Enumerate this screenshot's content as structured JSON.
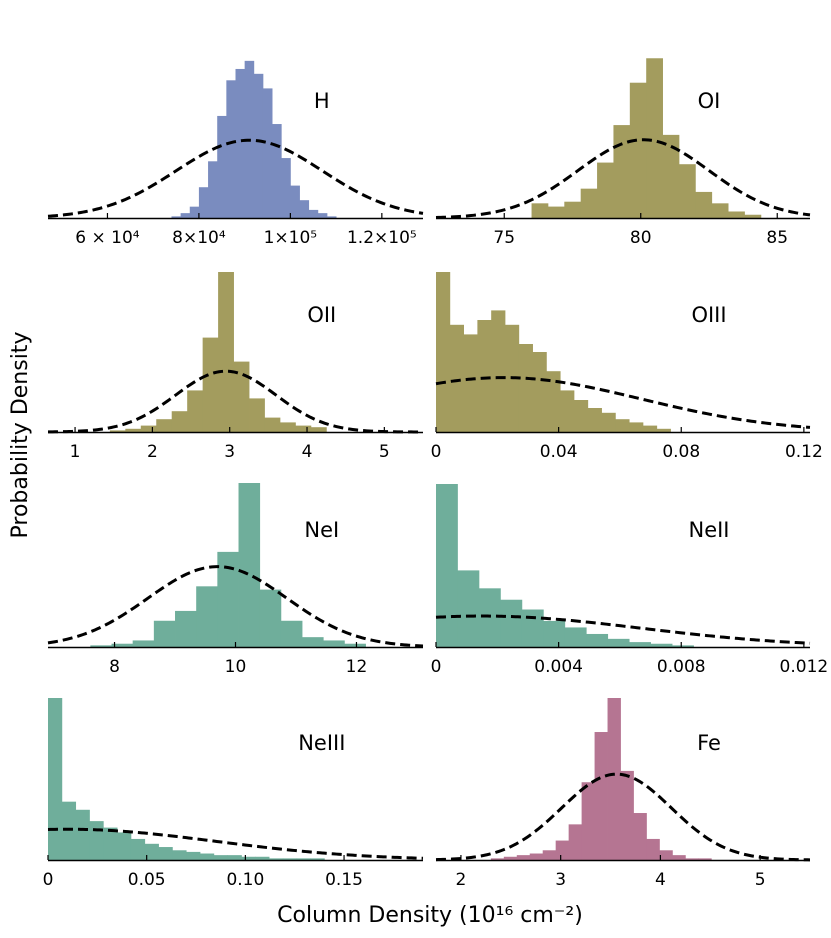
{
  "figure": {
    "ylabel": "Probability Density",
    "xlabel": "Column Density (10¹⁶ cm⁻²)"
  },
  "colors": {
    "blue": "#7a8cbf",
    "olive": "#a39c5e",
    "green": "#6fae9b",
    "pink": "#b57592",
    "fit_line": "#000000"
  },
  "chart_data": [
    {
      "type": "bar",
      "label": "H",
      "color_key": "blue",
      "xlim": [
        47000,
        129000
      ],
      "ticks": [
        {
          "v": 60000,
          "t": "6 × 10⁴"
        },
        {
          "v": 80000,
          "t": "8×10⁴"
        },
        {
          "v": 100000,
          "t": "1×10⁵"
        },
        {
          "v": 120000,
          "t": "1.2×10⁵"
        }
      ],
      "bin_start": 74000,
      "bin_width": 2000,
      "heights": [
        0.01,
        0.03,
        0.07,
        0.19,
        0.35,
        0.63,
        0.85,
        0.92,
        0.97,
        0.89,
        0.8,
        0.58,
        0.37,
        0.2,
        0.11,
        0.05,
        0.03,
        0.01
      ],
      "fit": {
        "mu": 91000,
        "sigma": 16000,
        "peak": 0.48
      }
    },
    {
      "type": "bar",
      "label": "OI",
      "color_key": "olive",
      "xlim": [
        72.5,
        86.2
      ],
      "ticks": [
        {
          "v": 75,
          "t": "75"
        },
        {
          "v": 80,
          "t": "80"
        },
        {
          "v": 85,
          "t": "85"
        }
      ],
      "bin_start": 76.0,
      "bin_width": 0.6,
      "heights": [
        0.09,
        0.07,
        0.1,
        0.18,
        0.34,
        0.57,
        0.83,
        0.98,
        0.51,
        0.33,
        0.16,
        0.09,
        0.04,
        0.02
      ],
      "fit": {
        "mu": 80.1,
        "sigma": 2.4,
        "peak": 0.48
      }
    },
    {
      "type": "bar",
      "label": "OII",
      "color_key": "olive",
      "xlim": [
        0.65,
        5.5
      ],
      "ticks": [
        {
          "v": 1,
          "t": "1"
        },
        {
          "v": 2,
          "t": "2"
        },
        {
          "v": 3,
          "t": "3"
        },
        {
          "v": 4,
          "t": "4"
        },
        {
          "v": 5,
          "t": "5"
        }
      ],
      "bin_start": 1.45,
      "bin_width": 0.2,
      "heights": [
        0.01,
        0.02,
        0.04,
        0.08,
        0.13,
        0.26,
        0.59,
        1.0,
        0.44,
        0.21,
        0.09,
        0.06,
        0.04,
        0.03
      ],
      "fit": {
        "mu": 2.95,
        "sigma": 0.65,
        "peak": 0.38
      }
    },
    {
      "type": "bar",
      "label": "OIII",
      "color_key": "olive",
      "xlim": [
        0,
        0.122
      ],
      "ticks": [
        {
          "v": 0,
          "t": "0"
        },
        {
          "v": 0.04,
          "t": "0.04"
        },
        {
          "v": 0.08,
          "t": "0.08"
        },
        {
          "v": 0.12,
          "t": "0.12"
        }
      ],
      "bin_start": 0,
      "bin_width": 0.0045,
      "heights": [
        1.0,
        0.67,
        0.61,
        0.7,
        0.76,
        0.67,
        0.55,
        0.5,
        0.38,
        0.26,
        0.2,
        0.15,
        0.12,
        0.08,
        0.06,
        0.04,
        0.02
      ],
      "fit": {
        "mu": 0.022,
        "sigma": 0.045,
        "peak": 0.34
      }
    },
    {
      "type": "bar",
      "label": "NeI",
      "color_key": "green",
      "xlim": [
        6.9,
        13.1
      ],
      "ticks": [
        {
          "v": 8,
          "t": "8"
        },
        {
          "v": 10,
          "t": "10"
        },
        {
          "v": 12,
          "t": "12"
        }
      ],
      "bin_start": 7.6,
      "bin_width": 0.35,
      "heights": [
        0.01,
        0.02,
        0.04,
        0.16,
        0.22,
        0.37,
        0.58,
        1.0,
        0.35,
        0.16,
        0.06,
        0.04,
        0.02
      ],
      "fit": {
        "mu": 9.7,
        "sigma": 1.15,
        "peak": 0.49
      }
    },
    {
      "type": "bar",
      "label": "NeII",
      "color_key": "green",
      "xlim": [
        0,
        0.0122
      ],
      "ticks": [
        {
          "v": 0,
          "t": "0"
        },
        {
          "v": 0.004,
          "t": "0.004"
        },
        {
          "v": 0.008,
          "t": "0.008"
        },
        {
          "v": 0.012,
          "t": "0.012"
        }
      ],
      "bin_start": 0,
      "bin_width": 0.0007,
      "heights": [
        1.0,
        0.47,
        0.36,
        0.29,
        0.23,
        0.16,
        0.12,
        0.08,
        0.05,
        0.03,
        0.02,
        0.01
      ],
      "fit": {
        "mu": 0.0015,
        "sigma": 0.0052,
        "peak": 0.19
      }
    },
    {
      "type": "bar",
      "label": "NeIII",
      "color_key": "green",
      "xlim": [
        0,
        0.19
      ],
      "ticks": [
        {
          "v": 0,
          "t": "0"
        },
        {
          "v": 0.05,
          "t": "0.05"
        },
        {
          "v": 0.1,
          "t": "0.10"
        },
        {
          "v": 0.15,
          "t": "0.15"
        }
      ],
      "bin_start": 0,
      "bin_width": 0.007,
      "heights": [
        1.0,
        0.36,
        0.31,
        0.24,
        0.2,
        0.17,
        0.13,
        0.1,
        0.08,
        0.06,
        0.05,
        0.04,
        0.03,
        0.03,
        0.02,
        0.02,
        0.01,
        0.01,
        0.01,
        0.01
      ],
      "fit": {
        "mu": 0.01,
        "sigma": 0.075,
        "peak": 0.19
      }
    },
    {
      "type": "bar",
      "label": "Fe",
      "color_key": "pink",
      "xlim": [
        1.75,
        5.5
      ],
      "ticks": [
        {
          "v": 2,
          "t": "2"
        },
        {
          "v": 3,
          "t": "3"
        },
        {
          "v": 4,
          "t": "4"
        },
        {
          "v": 5,
          "t": "5"
        }
      ],
      "bin_start": 2.3,
      "bin_width": 0.13,
      "heights": [
        0.01,
        0.02,
        0.03,
        0.04,
        0.06,
        0.12,
        0.22,
        0.48,
        0.79,
        1.0,
        0.55,
        0.29,
        0.13,
        0.06,
        0.03,
        0.01,
        0.01
      ],
      "fit": {
        "mu": 3.56,
        "sigma": 0.55,
        "peak": 0.53
      }
    }
  ]
}
